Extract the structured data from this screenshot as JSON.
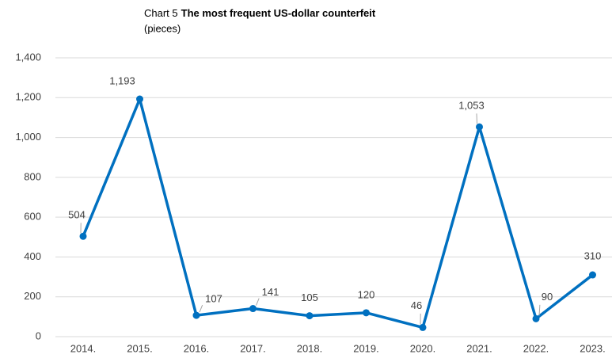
{
  "chart_data": {
    "type": "line",
    "title_label": "Chart 5",
    "title": "The most frequent US-dollar counterfeit",
    "subtitle": "(pieces)",
    "categories": [
      "2014.",
      "2015.",
      "2016.",
      "2017.",
      "2018.",
      "2019.",
      "2020.",
      "2021.",
      "2022.",
      "2023."
    ],
    "series": [
      {
        "color": "#0070c0",
        "values": [
          504,
          1193,
          107,
          141,
          105,
          120,
          46,
          1053,
          90,
          310
        ],
        "value_labels": [
          "504",
          "1,193",
          "107",
          "141",
          "105",
          "120",
          "46",
          "1,053",
          "90",
          "310"
        ]
      }
    ],
    "ylim": [
      0,
      1400
    ],
    "yticks": [
      0,
      200,
      400,
      600,
      800,
      {
        "value": 1000,
        "label": "1,000"
      },
      {
        "value": 1200,
        "label": "1,200"
      },
      {
        "value": 1400,
        "label": "1,400"
      }
    ],
    "grid": true
  }
}
